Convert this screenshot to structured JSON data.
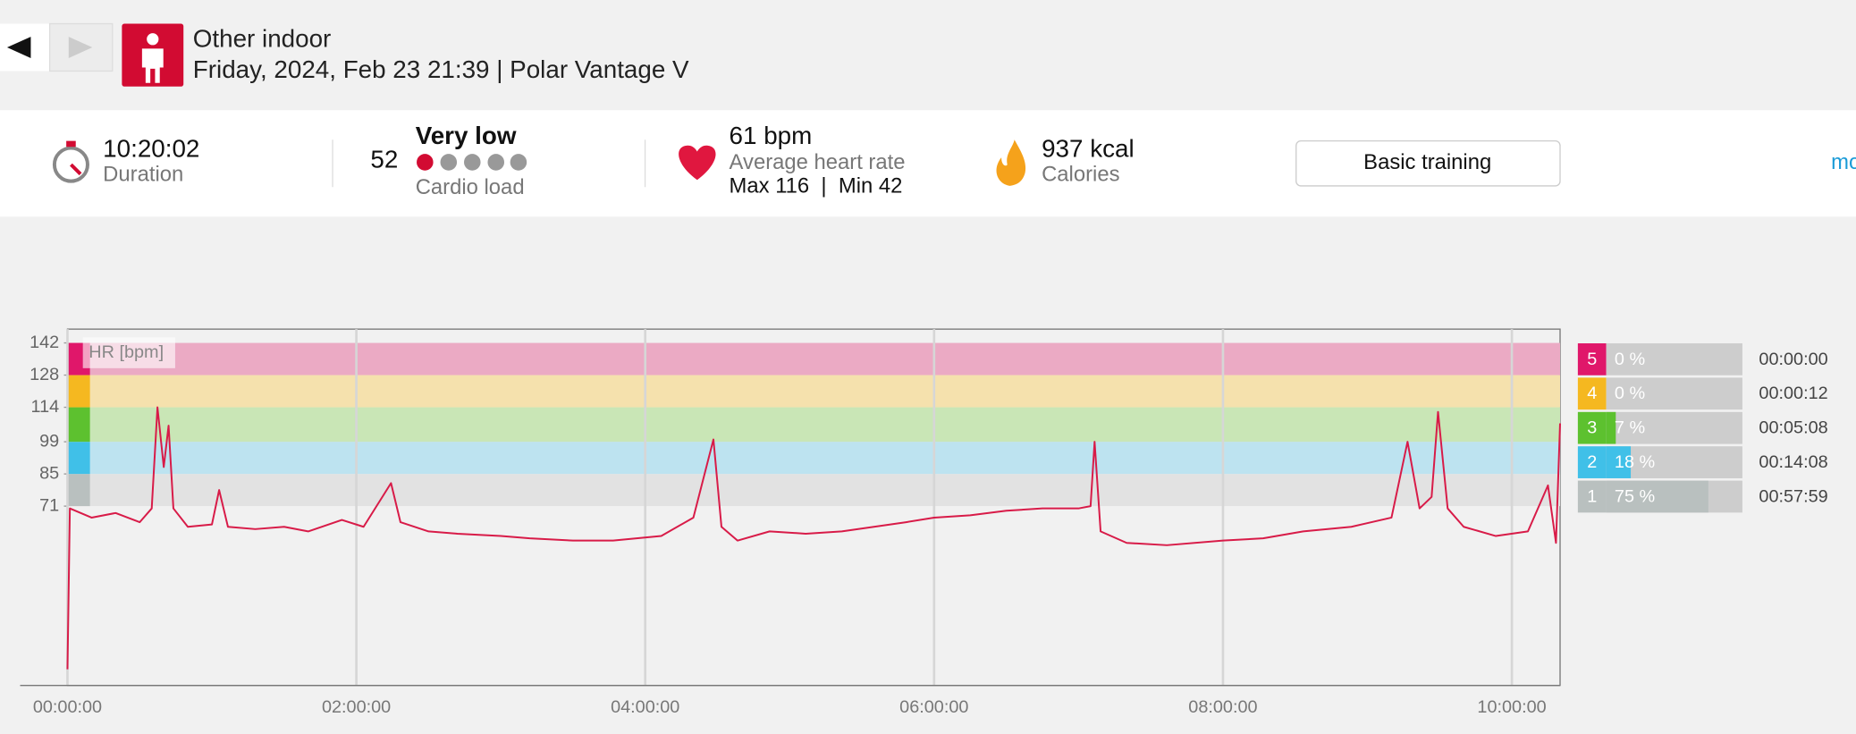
{
  "header": {
    "title": "Other indoor",
    "subtitle": "Friday, 2024, Feb 23 21:39 | Polar Vantage V"
  },
  "summary": {
    "duration": {
      "value": "10:20:02",
      "label": "Duration"
    },
    "cardio_load": {
      "value": "52",
      "status": "Very low",
      "label": "Cardio load"
    },
    "heart_rate": {
      "value": "61 bpm",
      "label": "Average heart rate",
      "range": "Max 116  |  Min 42"
    },
    "calories": {
      "value": "937 kcal",
      "label": "Calories"
    },
    "button": "Basic training",
    "more": "mo"
  },
  "chart_data": {
    "type": "line",
    "ylabel": "HR [bpm]",
    "color": "#d81b48",
    "x": [
      0,
      60,
      600,
      1200,
      1800,
      2100,
      2243,
      2400,
      2520,
      2640,
      3000,
      3600,
      3780,
      4000,
      4680,
      5400,
      6000,
      6840,
      7380,
      8064,
      8300,
      9000,
      9720,
      10800,
      11520,
      12600,
      13600,
      14800,
      15600,
      16100,
      16300,
      16700,
      17500,
      18400,
      19300,
      20100,
      20900,
      21600,
      22500,
      23400,
      24300,
      25200,
      25500,
      25600,
      25750,
      26400,
      27400,
      28800,
      29800,
      30800,
      32000,
      33000,
      33400,
      33700,
      34000,
      34160,
      34400,
      34800,
      35600,
      36400,
      36900,
      37100,
      37202
    ],
    "values": [
      0,
      70,
      66,
      68,
      64,
      70,
      114,
      88,
      106,
      70,
      62,
      63,
      78,
      62,
      61,
      62,
      60,
      65,
      62,
      81,
      64,
      60,
      59,
      58,
      57,
      56,
      56,
      58,
      66,
      100,
      62,
      56,
      60,
      59,
      60,
      62,
      64,
      66,
      67,
      69,
      70,
      70,
      71,
      99,
      60,
      55,
      54,
      56,
      57,
      60,
      62,
      66,
      99,
      70,
      75,
      112,
      70,
      62,
      58,
      60,
      80,
      55,
      107
    ],
    "xlim": [
      0,
      37202
    ],
    "xticks": [
      {
        "value": 0,
        "label": "00:00:00"
      },
      {
        "value": 7200,
        "label": "02:00:00"
      },
      {
        "value": 14400,
        "label": "04:00:00"
      },
      {
        "value": 21600,
        "label": "06:00:00"
      },
      {
        "value": 28800,
        "label": "08:00:00"
      },
      {
        "value": 36000,
        "label": "10:00:00"
      }
    ],
    "ylim": [
      -7,
      148
    ],
    "yticks": [
      71,
      85,
      99,
      114,
      128,
      142
    ],
    "band_colors": [
      "#e2e2e2",
      "#bde3f0",
      "#c9e6b6",
      "#f5e1ad",
      "#ebaac4"
    ],
    "grid": true
  },
  "zones": {
    "labels": [
      "5",
      "4",
      "3",
      "2",
      "1"
    ],
    "colors": [
      "#e0176a",
      "#f5b820",
      "#5dc12f",
      "#40c0e8",
      "#b9c0bf"
    ],
    "values": [
      0,
      0,
      7,
      18,
      75
    ],
    "value_labels": [
      "0 %",
      "0 %",
      "7 %",
      "18 %",
      "75 %"
    ],
    "times": [
      "00:00:00",
      "00:00:12",
      "00:05:08",
      "00:14:08",
      "00:57:59"
    ]
  }
}
